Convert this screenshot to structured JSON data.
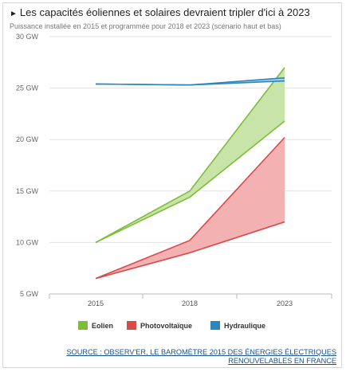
{
  "header": {
    "title": "Les capacités éoliennes et solaires devraient tripler d'ici à 2023",
    "subtitle": "Puissance installée en 2015 et programmée pour 2018 et 2023 (scénario haut et bas)"
  },
  "chart_data": {
    "type": "area",
    "title": "Les capacités éoliennes et solaires devraient tripler d'ici à 2023",
    "subtitle": "Puissance installée en 2015 et programmée pour 2018 et 2023 (scénario haut et bas)",
    "categories": [
      "2015",
      "2018",
      "2023"
    ],
    "ylim": [
      5,
      30
    ],
    "yticks": [
      5,
      10,
      15,
      20,
      25,
      30
    ],
    "ytick_labels": [
      "5 GW",
      "10 GW",
      "15 GW",
      "20 GW",
      "25 GW",
      "30 GW"
    ],
    "grid": true,
    "legend_position": "bottom",
    "series": [
      {
        "name": "Eolien",
        "color": "#7dbd3a",
        "fill": "#c9e4a8",
        "low": [
          10.0,
          14.4,
          21.8
        ],
        "high": [
          10.0,
          15.0,
          27.0
        ]
      },
      {
        "name": "Photovoltaïque",
        "color": "#d94a4a",
        "fill": "#f3b1b1",
        "low": [
          6.5,
          9.0,
          12.0
        ],
        "high": [
          6.5,
          10.2,
          20.2
        ]
      },
      {
        "name": "Hydraulique",
        "color": "#2a86bd",
        "fill": "#a9cfe6",
        "low": [
          25.4,
          25.3,
          25.7
        ],
        "high": [
          25.4,
          25.3,
          26.0
        ]
      }
    ]
  },
  "source": "SOURCE : OBSERV'ER, LE BAROMÈTRE 2015 DES ÉNERGIES ÉLECTRIQUES RENOUVELABLES EN FRANCE"
}
